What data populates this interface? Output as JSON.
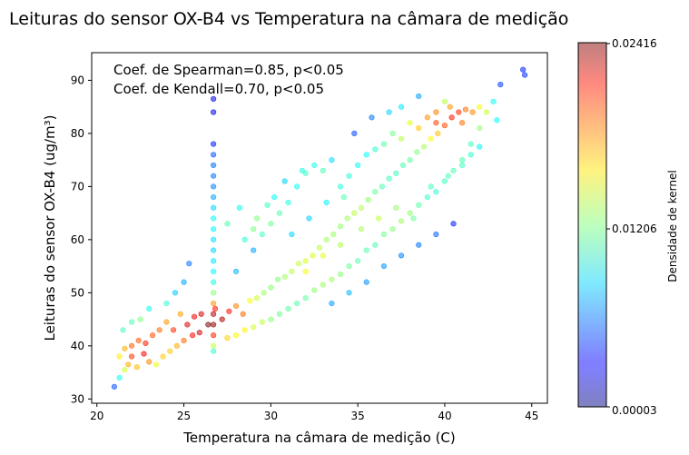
{
  "chart_data": {
    "type": "scatter",
    "title": "Leituras do sensor OX-B4 vs Temperatura na câmara de medição",
    "xlabel": "Temperatura na câmara de medição (C)",
    "ylabel": "Leituras do sensor OX-B4 (ug/m³)",
    "xlim": [
      19.7,
      45.9
    ],
    "ylim": [
      29.2,
      95.2
    ],
    "x_ticks": [
      20,
      25,
      30,
      35,
      40,
      45
    ],
    "y_ticks": [
      30,
      40,
      50,
      60,
      70,
      80,
      90
    ],
    "grid": false,
    "annotations": [
      "Coef. de Spearman=0.85, p<0.05",
      "Coef. de Kendall=0.70, p<0.05"
    ],
    "colorbar": {
      "label": "Densidade de kernel",
      "colormap": "jet",
      "min": 3e-05,
      "max": 0.02416,
      "ticks": [
        "0.00003",
        "0.01206",
        "0.02416"
      ]
    },
    "series": [
      {
        "marker_color": "density-mapped (jet)",
        "points": [
          [
            21.0,
            32.3
          ],
          [
            21.3,
            34.0
          ],
          [
            21.6,
            35.5
          ],
          [
            21.8,
            36.5
          ],
          [
            22.0,
            38.0
          ],
          [
            22.3,
            36.0
          ],
          [
            22.7,
            38.5
          ],
          [
            23.0,
            37.0
          ],
          [
            23.4,
            36.5
          ],
          [
            23.8,
            38.0
          ],
          [
            24.2,
            39.0
          ],
          [
            24.6,
            40.0
          ],
          [
            25.0,
            41.0
          ],
          [
            25.5,
            42.0
          ],
          [
            25.9,
            42.5
          ],
          [
            21.3,
            38.0
          ],
          [
            21.6,
            39.5
          ],
          [
            22.0,
            40.0
          ],
          [
            22.4,
            41.0
          ],
          [
            22.8,
            40.5
          ],
          [
            23.2,
            42.0
          ],
          [
            23.6,
            43.0
          ],
          [
            24.0,
            44.5
          ],
          [
            24.4,
            43.0
          ],
          [
            24.8,
            46.0
          ],
          [
            25.2,
            44.0
          ],
          [
            25.6,
            45.5
          ],
          [
            26.0,
            46.0
          ],
          [
            26.4,
            44.0
          ],
          [
            26.8,
            47.0
          ],
          [
            27.2,
            45.0
          ],
          [
            27.6,
            46.5
          ],
          [
            28.0,
            47.5
          ],
          [
            28.4,
            46.0
          ],
          [
            28.8,
            48.5
          ],
          [
            29.2,
            49.0
          ],
          [
            29.6,
            50.0
          ],
          [
            30.0,
            51.0
          ],
          [
            30.4,
            52.5
          ],
          [
            30.8,
            53.0
          ],
          [
            31.2,
            54.0
          ],
          [
            31.6,
            55.5
          ],
          [
            32.0,
            56.0
          ],
          [
            32.4,
            57.0
          ],
          [
            32.8,
            58.5
          ],
          [
            33.2,
            60.0
          ],
          [
            33.6,
            61.0
          ],
          [
            34.0,
            62.5
          ],
          [
            34.4,
            64.0
          ],
          [
            34.8,
            65.0
          ],
          [
            35.2,
            66.0
          ],
          [
            35.6,
            67.5
          ],
          [
            36.0,
            69.0
          ],
          [
            36.4,
            70.0
          ],
          [
            36.8,
            71.5
          ],
          [
            37.2,
            72.5
          ],
          [
            37.6,
            74.0
          ],
          [
            38.0,
            75.0
          ],
          [
            38.4,
            76.5
          ],
          [
            38.8,
            77.5
          ],
          [
            39.2,
            79.0
          ],
          [
            39.6,
            80.0
          ],
          [
            40.0,
            81.5
          ],
          [
            40.4,
            83.0
          ],
          [
            40.8,
            84.0
          ],
          [
            41.2,
            84.5
          ],
          [
            41.6,
            84.0
          ],
          [
            42.0,
            85.0
          ],
          [
            42.4,
            84.0
          ],
          [
            42.8,
            86.0
          ],
          [
            43.2,
            89.2
          ],
          [
            44.5,
            92.0
          ],
          [
            44.6,
            91.0
          ],
          [
            26.7,
            86.5
          ],
          [
            26.7,
            84.0
          ],
          [
            26.7,
            78.0
          ],
          [
            26.7,
            76.0
          ],
          [
            26.7,
            74.0
          ],
          [
            26.7,
            72.0
          ],
          [
            26.7,
            70.0
          ],
          [
            26.7,
            68.0
          ],
          [
            26.7,
            66.0
          ],
          [
            26.7,
            64.0
          ],
          [
            26.7,
            62.0
          ],
          [
            26.7,
            60.0
          ],
          [
            26.7,
            58.0
          ],
          [
            26.7,
            56.0
          ],
          [
            26.7,
            54.0
          ],
          [
            26.7,
            52.0
          ],
          [
            26.7,
            50.0
          ],
          [
            26.7,
            48.0
          ],
          [
            26.7,
            46.0
          ],
          [
            26.7,
            44.0
          ],
          [
            26.7,
            42.0
          ],
          [
            26.7,
            40.0
          ],
          [
            26.7,
            39.0
          ],
          [
            28.0,
            54.0
          ],
          [
            29.0,
            58.0
          ],
          [
            29.5,
            61.0
          ],
          [
            30.0,
            63.0
          ],
          [
            30.5,
            65.0
          ],
          [
            31.0,
            67.0
          ],
          [
            31.5,
            70.0
          ],
          [
            32.0,
            72.5
          ],
          [
            32.5,
            74.0
          ],
          [
            33.0,
            73.0
          ],
          [
            33.5,
            75.0
          ],
          [
            34.0,
            70.0
          ],
          [
            34.5,
            72.0
          ],
          [
            35.0,
            74.0
          ],
          [
            35.5,
            76.0
          ],
          [
            36.0,
            77.0
          ],
          [
            36.5,
            78.0
          ],
          [
            37.0,
            80.0
          ],
          [
            37.5,
            79.0
          ],
          [
            38.0,
            82.0
          ],
          [
            38.5,
            81.0
          ],
          [
            39.0,
            83.0
          ],
          [
            39.5,
            82.0
          ],
          [
            40.0,
            86.0
          ],
          [
            40.3,
            85.0
          ],
          [
            28.5,
            60.0
          ],
          [
            29.2,
            64.0
          ],
          [
            30.2,
            68.0
          ],
          [
            31.2,
            61.0
          ],
          [
            32.2,
            64.0
          ],
          [
            33.2,
            67.0
          ],
          [
            34.2,
            68.0
          ],
          [
            35.2,
            62.0
          ],
          [
            36.2,
            64.0
          ],
          [
            37.2,
            66.0
          ],
          [
            38.2,
            64.0
          ],
          [
            39.2,
            70.0
          ],
          [
            40.2,
            72.0
          ],
          [
            41.0,
            75.0
          ],
          [
            41.5,
            78.0
          ],
          [
            27.5,
            41.5
          ],
          [
            28.0,
            42.0
          ],
          [
            28.5,
            43.0
          ],
          [
            29.0,
            43.5
          ],
          [
            29.5,
            44.5
          ],
          [
            30.0,
            45.0
          ],
          [
            30.5,
            46.0
          ],
          [
            31.0,
            47.0
          ],
          [
            31.5,
            48.0
          ],
          [
            32.0,
            49.0
          ],
          [
            32.5,
            50.5
          ],
          [
            33.0,
            51.5
          ],
          [
            33.5,
            52.5
          ],
          [
            34.0,
            53.5
          ],
          [
            34.5,
            55.0
          ],
          [
            35.0,
            56.0
          ],
          [
            35.5,
            58.0
          ],
          [
            36.0,
            59.0
          ],
          [
            36.5,
            61.0
          ],
          [
            37.0,
            62.0
          ],
          [
            37.5,
            63.5
          ],
          [
            38.0,
            65.0
          ],
          [
            38.5,
            66.5
          ],
          [
            39.0,
            68.0
          ],
          [
            39.5,
            69.0
          ],
          [
            40.0,
            71.0
          ],
          [
            40.5,
            73.0
          ],
          [
            41.0,
            74.0
          ],
          [
            41.5,
            76.0
          ],
          [
            42.0,
            77.5
          ],
          [
            24.0,
            48.0
          ],
          [
            24.5,
            50.0
          ],
          [
            25.0,
            52.0
          ],
          [
            25.3,
            55.5
          ],
          [
            23.0,
            47.0
          ],
          [
            22.5,
            45.0
          ],
          [
            22.0,
            44.5
          ],
          [
            21.5,
            43.0
          ],
          [
            27.5,
            63.0
          ],
          [
            28.2,
            66.0
          ],
          [
            29.0,
            62.0
          ],
          [
            29.8,
            66.5
          ],
          [
            30.8,
            71.0
          ],
          [
            31.8,
            73.0
          ],
          [
            34.8,
            80.0
          ],
          [
            35.8,
            83.0
          ],
          [
            36.8,
            84.0
          ],
          [
            37.5,
            85.0
          ],
          [
            38.5,
            87.0
          ],
          [
            39.5,
            84.0
          ],
          [
            41.0,
            82.0
          ],
          [
            42.0,
            81.0
          ],
          [
            43.0,
            82.5
          ],
          [
            32.0,
            54.0
          ],
          [
            33.0,
            57.0
          ],
          [
            34.0,
            59.0
          ],
          [
            33.5,
            48.0
          ],
          [
            34.5,
            50.0
          ],
          [
            35.5,
            52.0
          ],
          [
            36.5,
            55.0
          ],
          [
            37.5,
            57.0
          ],
          [
            38.5,
            59.0
          ],
          [
            39.5,
            61.0
          ],
          [
            40.5,
            63.0
          ]
        ]
      }
    ]
  }
}
